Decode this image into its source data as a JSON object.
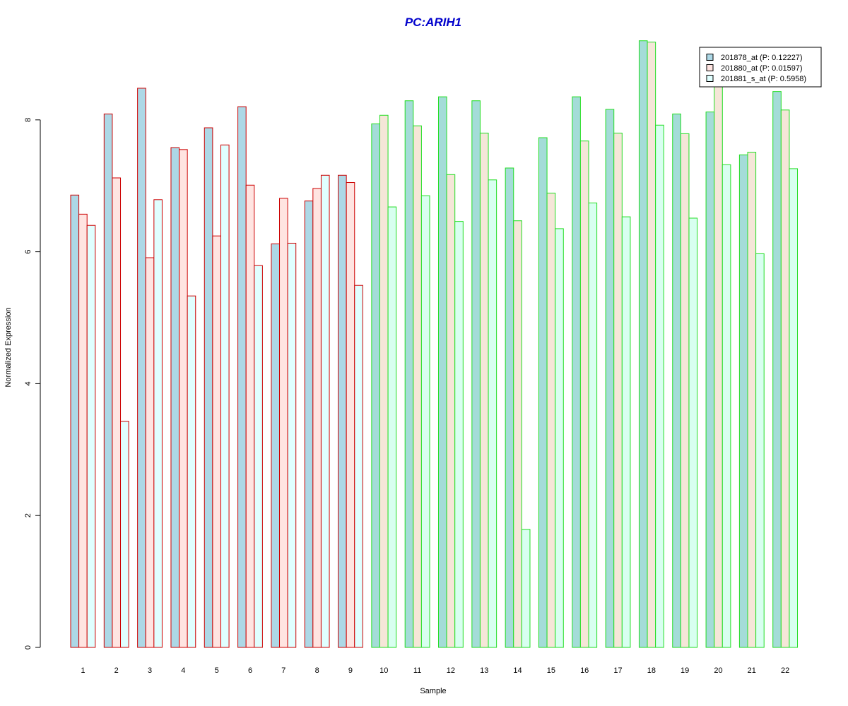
{
  "chart_data": {
    "type": "bar",
    "title": "PC:ARIH1",
    "xlabel": "Sample",
    "ylabel": "Normalized Expression",
    "categories": [
      "1",
      "2",
      "3",
      "4",
      "5",
      "6",
      "7",
      "8",
      "9",
      "10",
      "11",
      "12",
      "13",
      "14",
      "15",
      "16",
      "17",
      "18",
      "19",
      "20",
      "21",
      "22"
    ],
    "yticks": [
      0,
      2,
      4,
      6,
      8
    ],
    "ylim": [
      0,
      9.55
    ],
    "series": [
      {
        "name": "201878_at (P: 0.12227)",
        "values": [
          6.86,
          8.09,
          8.48,
          7.58,
          7.88,
          8.2,
          6.12,
          6.77,
          7.16,
          7.94,
          8.29,
          8.35,
          8.29,
          7.27,
          7.73,
          8.35,
          8.16,
          9.2,
          8.09,
          8.12,
          7.47,
          8.43
        ]
      },
      {
        "name": "201880_at (P: 0.01597)",
        "values": [
          6.57,
          7.12,
          5.91,
          7.55,
          6.24,
          7.01,
          6.81,
          6.96,
          7.05,
          8.07,
          7.91,
          7.17,
          7.8,
          6.47,
          6.89,
          7.68,
          7.8,
          9.18,
          7.79,
          8.55,
          7.51,
          8.15
        ]
      },
      {
        "name": "201881_s_at (P: 0.5958)",
        "values": [
          6.4,
          3.43,
          6.79,
          5.33,
          7.62,
          5.79,
          6.13,
          7.16,
          5.49,
          6.68,
          6.85,
          6.46,
          7.09,
          1.79,
          6.35,
          6.74,
          6.53,
          7.92,
          6.51,
          7.32,
          5.97,
          7.26
        ]
      }
    ],
    "groups": [
      {
        "samples": [
          1,
          2,
          3,
          4,
          5,
          6,
          7,
          8,
          9
        ],
        "border_color": "#cc0000"
      },
      {
        "samples": [
          10,
          11,
          12,
          13,
          14,
          15,
          16,
          17,
          18,
          19,
          20,
          21,
          22
        ],
        "border_color": "#22dd22"
      }
    ],
    "colors": {
      "title": "#0000cc",
      "group1_fills": [
        "#add8e6",
        "#ffe4e1",
        "#e0ffff"
      ],
      "group2_fills": [
        "#a4dcd8",
        "#f5e6d8",
        "#d8fff0"
      ],
      "legend_fills": [
        "#add8e6",
        "#ffe4e1",
        "#e0ffff"
      ]
    },
    "legend_position": "top-right",
    "grid": false
  }
}
